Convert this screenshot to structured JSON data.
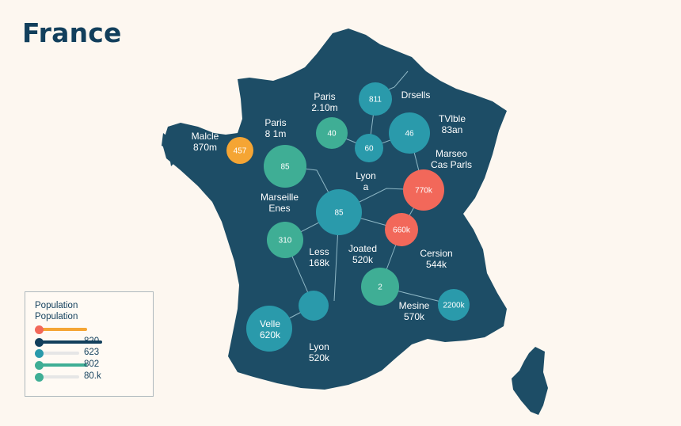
{
  "title": "France",
  "colors": {
    "land": "#1d4d66",
    "orange": "#f5a534",
    "red": "#f2685a",
    "green": "#3fae95",
    "teal": "#2a9aab",
    "navy": "#123f5c"
  },
  "labels": [
    {
      "line1": "Paris",
      "line2": "2.10m"
    },
    {
      "line1": "Drsells",
      "line2": ""
    },
    {
      "line1": "Paris",
      "line2": "8 1m"
    },
    {
      "line1": "TVlble",
      "line2": "83an"
    },
    {
      "line1": "Malcle",
      "line2": "870m"
    },
    {
      "line1": "Marseo",
      "line2": "Cas Parls"
    },
    {
      "line1": "Lyon",
      "line2": "a"
    },
    {
      "line1": "Marseille",
      "line2": "Enes"
    },
    {
      "line1": "Less",
      "line2": "168k"
    },
    {
      "line1": "Joated",
      "line2": "520k"
    },
    {
      "line1": "Cersion",
      "line2": "544k"
    },
    {
      "line1": "Mesine",
      "line2": "570k"
    },
    {
      "line1": "Velle",
      "line2": "620k"
    },
    {
      "line1": "Lyon",
      "line2": "520k"
    }
  ],
  "bubbles": [
    {
      "value": "811",
      "color": "teal"
    },
    {
      "value": "40",
      "color": "green"
    },
    {
      "value": "60",
      "color": "teal"
    },
    {
      "value": "46",
      "color": "teal"
    },
    {
      "value": "457",
      "color": "orange"
    },
    {
      "value": "85",
      "color": "green"
    },
    {
      "value": "770k",
      "color": "red"
    },
    {
      "value": "85",
      "color": "teal"
    },
    {
      "value": "660k",
      "color": "red"
    },
    {
      "value": "310",
      "color": "green"
    },
    {
      "value": "2",
      "color": "green"
    },
    {
      "value": "",
      "color": "teal"
    },
    {
      "value": "",
      "color": "teal"
    },
    {
      "value": "2200k",
      "color": "teal"
    }
  ],
  "legend": {
    "title_line1": "Population",
    "title_line2": "Population",
    "rows": [
      {
        "value": "",
        "color": "red",
        "bar_color": "orange",
        "bar_fraction": 0.66
      },
      {
        "value": "820",
        "color": "navy",
        "bar_color": "navy",
        "bar_fraction": 0.87
      },
      {
        "value": "623",
        "color": "teal",
        "bar_color": "#e6e6e6",
        "bar_fraction": 0.55
      },
      {
        "value": "802",
        "color": "green",
        "bar_color": "green",
        "bar_fraction": 0.66
      },
      {
        "value": "80.k",
        "color": "green",
        "bar_color": "#e6e6e6",
        "bar_fraction": 0.55
      }
    ]
  }
}
